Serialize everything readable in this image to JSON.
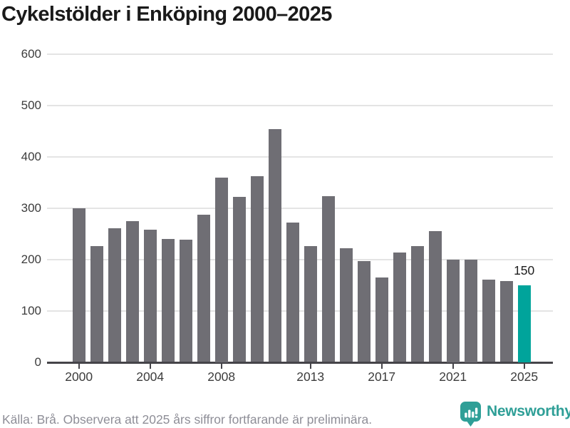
{
  "title": "Cykelstölder i Enköping 2000–2025",
  "footer": {
    "source_text": "Källa: Brå. Observera att 2025 års siffror fortfarande är preliminära.",
    "brand": "Newsworthy"
  },
  "colors": {
    "bar": "#6f6e74",
    "highlight": "#00a49b",
    "grid": "#e4e4e4",
    "axis": "#454449",
    "title_text": "#1a1a1a",
    "tick_text": "#3c3c3c",
    "muted_text": "#8e8e97",
    "brand_teal": "#2f9f97"
  },
  "chart_data": {
    "type": "bar",
    "title": "Cykelstölder i Enköping 2000–2025",
    "xlabel": "",
    "ylabel": "",
    "x": [
      2000,
      2001,
      2002,
      2003,
      2004,
      2005,
      2006,
      2007,
      2008,
      2009,
      2010,
      2011,
      2012,
      2013,
      2014,
      2015,
      2016,
      2017,
      2018,
      2019,
      2020,
      2021,
      2022,
      2023,
      2024,
      2025
    ],
    "values": [
      299,
      226,
      260,
      274,
      258,
      240,
      238,
      287,
      359,
      322,
      362,
      454,
      272,
      226,
      323,
      222,
      196,
      164,
      213,
      226,
      255,
      200,
      200,
      161,
      158,
      150
    ],
    "highlight_year": 2025,
    "highlight_label": "150",
    "ylim": [
      0,
      600
    ],
    "y_ticks": [
      0,
      100,
      200,
      300,
      400,
      500,
      600
    ],
    "x_tick_labels": [
      2000,
      2004,
      2008,
      2013,
      2017,
      2021,
      2025
    ],
    "grid": true,
    "legend": null
  }
}
